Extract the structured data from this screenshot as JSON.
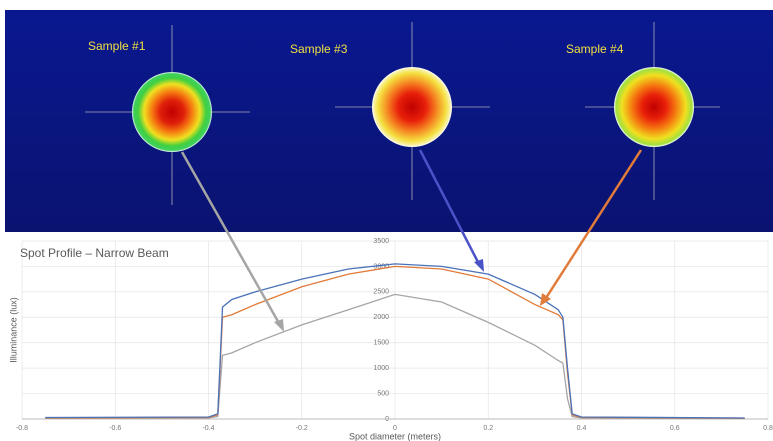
{
  "chart_data": {
    "type": "line",
    "title": "Spot Profile – Narrow Beam",
    "xlabel": "Spot diameter (meters)",
    "ylabel": "Illuminance (lux)",
    "annotations": [
      "Sample #1",
      "Sample #3",
      "Sample #4"
    ],
    "x": [
      -0.75,
      -0.4,
      -0.38,
      -0.37,
      -0.35,
      -0.3,
      -0.2,
      -0.1,
      0,
      0.1,
      0.2,
      0.3,
      0.35,
      0.36,
      0.37,
      0.38,
      0.4,
      0.75
    ],
    "series": [
      {
        "color": "#4a72b8",
        "values": [
          30,
          40,
          100,
          2200,
          2350,
          2500,
          2750,
          2950,
          3050,
          3000,
          2850,
          2450,
          2150,
          2000,
          1000,
          100,
          40,
          20
        ]
      },
      {
        "color": "#e07b39",
        "values": [
          20,
          30,
          80,
          2000,
          2050,
          2250,
          2600,
          2850,
          3000,
          2950,
          2750,
          2250,
          2050,
          1950,
          900,
          80,
          30,
          15
        ]
      },
      {
        "color": "#a5a5a5",
        "values": [
          15,
          20,
          50,
          1250,
          1300,
          1500,
          1850,
          2150,
          2450,
          2300,
          1900,
          1450,
          1150,
          1100,
          400,
          50,
          20,
          10
        ]
      }
    ],
    "xlim": [
      -0.8,
      0.8
    ],
    "xticks": [
      -0.8,
      -0.6,
      -0.4,
      -0.2,
      0,
      0.2,
      0.4,
      0.6,
      0.8
    ],
    "ylim": [
      0,
      3500
    ],
    "yticks": [
      0,
      500,
      1000,
      1500,
      2000,
      2500,
      3000,
      3500
    ],
    "grid": true
  }
}
